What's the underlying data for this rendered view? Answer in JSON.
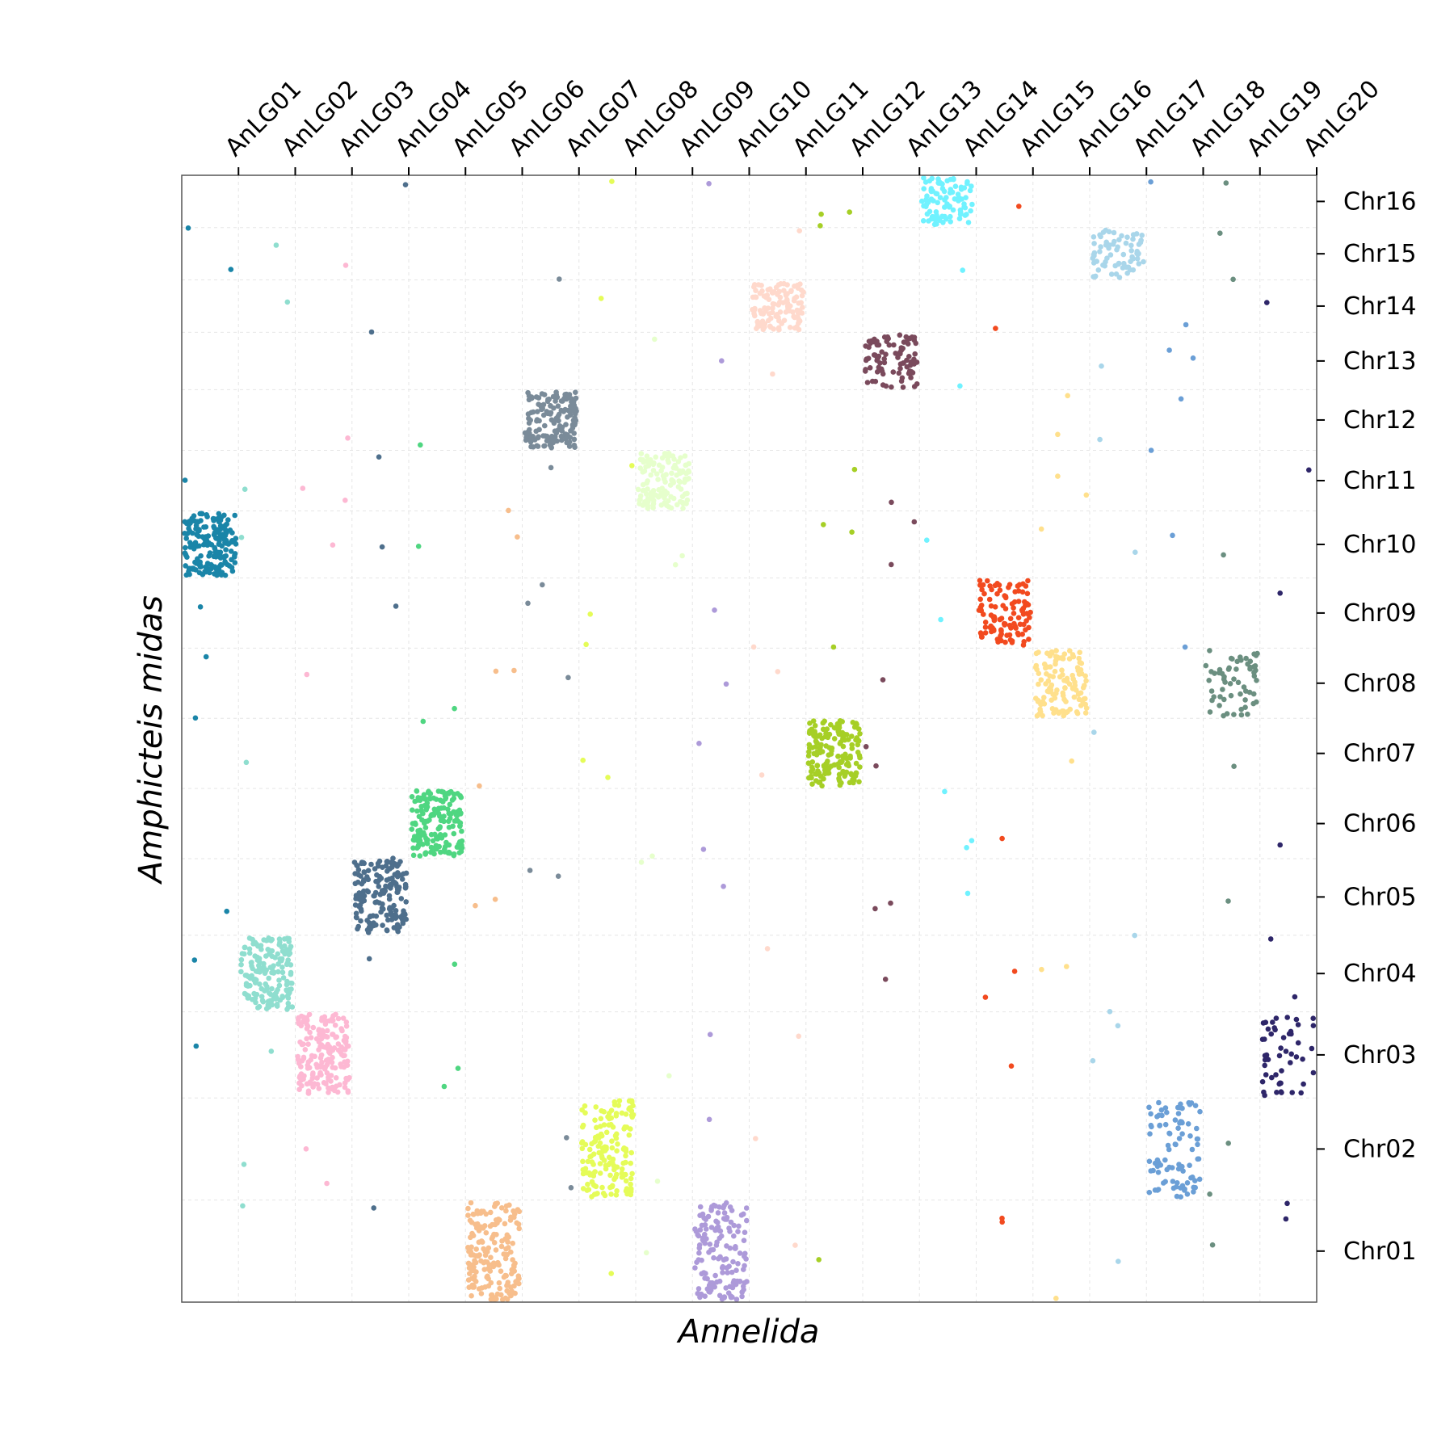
{
  "chart_data": {
    "type": "scatter",
    "title": "",
    "xlabel": "Annelida",
    "ylabel": "Amphicteis midas",
    "x_categories": [
      "AnLG01",
      "AnLG02",
      "AnLG03",
      "AnLG04",
      "AnLG05",
      "AnLG06",
      "AnLG07",
      "AnLG08",
      "AnLG09",
      "AnLG10",
      "AnLG11",
      "AnLG12",
      "AnLG13",
      "AnLG14",
      "AnLG15",
      "AnLG16",
      "AnLG17",
      "AnLG18",
      "AnLG19",
      "AnLG20"
    ],
    "y_categories": [
      "Chr01",
      "Chr02",
      "Chr03",
      "Chr04",
      "Chr05",
      "Chr06",
      "Chr07",
      "Chr08",
      "Chr09",
      "Chr10",
      "Chr11",
      "Chr12",
      "Chr13",
      "Chr14",
      "Chr15",
      "Chr16"
    ],
    "x_tick_position": "top",
    "y_tick_position": "right",
    "grid": true,
    "legend": "none",
    "point_estimate_note_hidden": false,
    "blocks": [
      {
        "x": "AnLG01",
        "y": "Chr10",
        "n": 190,
        "color": "#1a85a8"
      },
      {
        "x": "AnLG02",
        "y": "Chr04",
        "n": 170,
        "color": "#8fdecf"
      },
      {
        "x": "AnLG03",
        "y": "Chr03",
        "n": 180,
        "color": "#fdb8d3"
      },
      {
        "x": "AnLG04",
        "y": "Chr05",
        "n": 170,
        "color": "#4e6f8c"
      },
      {
        "x": "AnLG05",
        "y": "Chr06",
        "n": 170,
        "color": "#4fd681"
      },
      {
        "x": "AnLG06",
        "y": "Chr01",
        "n": 180,
        "color": "#f7be8c"
      },
      {
        "x": "AnLG07",
        "y": "Chr12",
        "n": 150,
        "color": "#7a8b99"
      },
      {
        "x": "AnLG08",
        "y": "Chr02",
        "n": 160,
        "color": "#e5fc58"
      },
      {
        "x": "AnLG09",
        "y": "Chr11",
        "n": 130,
        "color": "#e6ffcc"
      },
      {
        "x": "AnLG10",
        "y": "Chr01",
        "n": 150,
        "color": "#ad9ad9"
      },
      {
        "x": "AnLG11",
        "y": "Chr14",
        "n": 120,
        "color": "#ffd9cc"
      },
      {
        "x": "AnLG12",
        "y": "Chr07",
        "n": 170,
        "color": "#a6cf26"
      },
      {
        "x": "AnLG13",
        "y": "Chr13",
        "n": 90,
        "color": "#7a4a5c"
      },
      {
        "x": "AnLG14",
        "y": "Chr16",
        "n": 90,
        "color": "#70f2ff"
      },
      {
        "x": "AnLG15",
        "y": "Chr09",
        "n": 110,
        "color": "#f24a1f"
      },
      {
        "x": "AnLG16",
        "y": "Chr08",
        "n": 120,
        "color": "#ffe08c"
      },
      {
        "x": "AnLG17",
        "y": "Chr15",
        "n": 70,
        "color": "#a9d6ea"
      },
      {
        "x": "AnLG18",
        "y": "Chr02",
        "n": 90,
        "color": "#6b9fd6"
      },
      {
        "x": "AnLG19",
        "y": "Chr08",
        "n": 60,
        "color": "#6b8f80"
      },
      {
        "x": "AnLG20",
        "y": "Chr03",
        "n": 50,
        "color": "#2e2669"
      }
    ],
    "background_points_per_color": 9
  }
}
